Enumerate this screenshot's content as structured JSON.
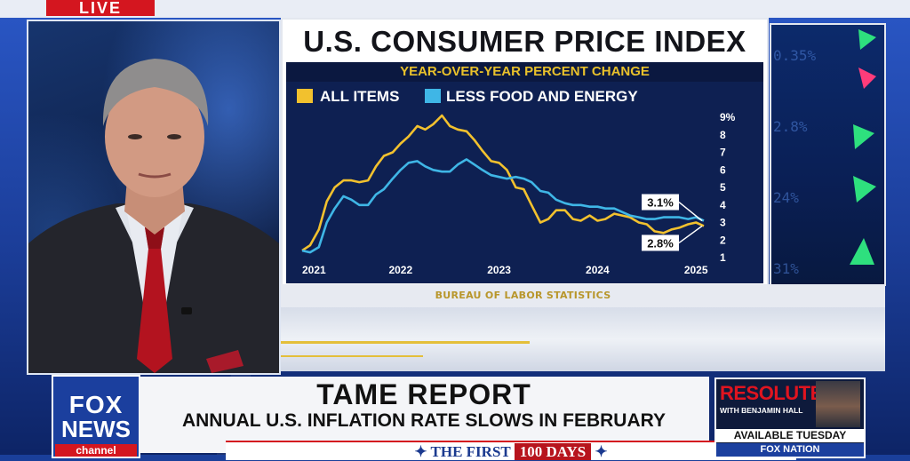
{
  "live_label": "LIVE",
  "chart_panel": {
    "title": "U.S. CONSUMER PRICE INDEX",
    "subtitle": "YEAR-OVER-YEAR PERCENT CHANGE",
    "source": "BUREAU OF LABOR STATISTICS"
  },
  "chart_data": {
    "type": "line",
    "title": "U.S. CONSUMER PRICE INDEX",
    "subtitle": "YEAR-OVER-YEAR PERCENT CHANGE",
    "xlabel": "",
    "ylabel": "",
    "x_ticks": [
      "2021",
      "2022",
      "2023",
      "2024",
      "2025"
    ],
    "y_ticks": [
      "9%",
      "8",
      "7",
      "6",
      "5",
      "4",
      "3",
      "2",
      "1"
    ],
    "ylim": [
      1,
      9
    ],
    "xlim": [
      2021.0,
      2025.17
    ],
    "legend_position": "top-left",
    "series": [
      {
        "name": "ALL ITEMS",
        "color": "#f2c12e",
        "points": [
          [
            2021.0,
            1.4
          ],
          [
            2021.08,
            1.7
          ],
          [
            2021.17,
            2.6
          ],
          [
            2021.25,
            4.2
          ],
          [
            2021.33,
            5.0
          ],
          [
            2021.42,
            5.4
          ],
          [
            2021.5,
            5.4
          ],
          [
            2021.58,
            5.3
          ],
          [
            2021.67,
            5.4
          ],
          [
            2021.75,
            6.2
          ],
          [
            2021.83,
            6.8
          ],
          [
            2021.92,
            7.0
          ],
          [
            2022.0,
            7.5
          ],
          [
            2022.08,
            7.9
          ],
          [
            2022.17,
            8.5
          ],
          [
            2022.25,
            8.3
          ],
          [
            2022.33,
            8.6
          ],
          [
            2022.42,
            9.1
          ],
          [
            2022.5,
            8.5
          ],
          [
            2022.58,
            8.3
          ],
          [
            2022.67,
            8.2
          ],
          [
            2022.75,
            7.7
          ],
          [
            2022.83,
            7.1
          ],
          [
            2022.92,
            6.5
          ],
          [
            2023.0,
            6.4
          ],
          [
            2023.08,
            6.0
          ],
          [
            2023.17,
            5.0
          ],
          [
            2023.25,
            4.9
          ],
          [
            2023.33,
            4.0
          ],
          [
            2023.42,
            3.0
          ],
          [
            2023.5,
            3.2
          ],
          [
            2023.58,
            3.7
          ],
          [
            2023.67,
            3.7
          ],
          [
            2023.75,
            3.2
          ],
          [
            2023.83,
            3.1
          ],
          [
            2023.92,
            3.4
          ],
          [
            2024.0,
            3.1
          ],
          [
            2024.08,
            3.2
          ],
          [
            2024.17,
            3.5
          ],
          [
            2024.25,
            3.4
          ],
          [
            2024.33,
            3.3
          ],
          [
            2024.42,
            3.0
          ],
          [
            2024.5,
            2.9
          ],
          [
            2024.58,
            2.5
          ],
          [
            2024.67,
            2.4
          ],
          [
            2024.75,
            2.6
          ],
          [
            2024.83,
            2.7
          ],
          [
            2024.92,
            2.9
          ],
          [
            2025.0,
            3.0
          ],
          [
            2025.08,
            2.8
          ]
        ]
      },
      {
        "name": "LESS FOOD AND ENERGY",
        "color": "#3fb6e6",
        "points": [
          [
            2021.0,
            1.4
          ],
          [
            2021.08,
            1.3
          ],
          [
            2021.17,
            1.6
          ],
          [
            2021.25,
            3.0
          ],
          [
            2021.33,
            3.8
          ],
          [
            2021.42,
            4.5
          ],
          [
            2021.5,
            4.3
          ],
          [
            2021.58,
            4.0
          ],
          [
            2021.67,
            4.0
          ],
          [
            2021.75,
            4.6
          ],
          [
            2021.83,
            4.9
          ],
          [
            2021.92,
            5.5
          ],
          [
            2022.0,
            6.0
          ],
          [
            2022.08,
            6.4
          ],
          [
            2022.17,
            6.5
          ],
          [
            2022.25,
            6.2
          ],
          [
            2022.33,
            6.0
          ],
          [
            2022.42,
            5.9
          ],
          [
            2022.5,
            5.9
          ],
          [
            2022.58,
            6.3
          ],
          [
            2022.67,
            6.6
          ],
          [
            2022.75,
            6.3
          ],
          [
            2022.83,
            6.0
          ],
          [
            2022.92,
            5.7
          ],
          [
            2023.0,
            5.6
          ],
          [
            2023.08,
            5.5
          ],
          [
            2023.17,
            5.6
          ],
          [
            2023.25,
            5.5
          ],
          [
            2023.33,
            5.3
          ],
          [
            2023.42,
            4.8
          ],
          [
            2023.5,
            4.7
          ],
          [
            2023.58,
            4.3
          ],
          [
            2023.67,
            4.1
          ],
          [
            2023.75,
            4.0
          ],
          [
            2023.83,
            4.0
          ],
          [
            2023.92,
            3.9
          ],
          [
            2024.0,
            3.9
          ],
          [
            2024.08,
            3.8
          ],
          [
            2024.17,
            3.8
          ],
          [
            2024.25,
            3.6
          ],
          [
            2024.33,
            3.4
          ],
          [
            2024.42,
            3.3
          ],
          [
            2024.5,
            3.2
          ],
          [
            2024.58,
            3.2
          ],
          [
            2024.67,
            3.3
          ],
          [
            2024.75,
            3.3
          ],
          [
            2024.83,
            3.3
          ],
          [
            2024.92,
            3.2
          ],
          [
            2025.0,
            3.3
          ],
          [
            2025.08,
            3.1
          ]
        ]
      }
    ],
    "annotations": [
      {
        "text": "3.1%",
        "series": "LESS FOOD AND ENERGY",
        "value": 3.1
      },
      {
        "text": "2.8%",
        "series": "ALL ITEMS",
        "value": 2.8
      }
    ]
  },
  "lower_third": {
    "network_top": "FOX",
    "network_mid": "NEWS",
    "network_bottom": "channel",
    "headline": "TAME REPORT",
    "subheadline": "ANNUAL U.S. INFLATION RATE SLOWS IN FEBRUARY",
    "ticker_left": "THE FIRST",
    "ticker_days": "100 DAYS"
  },
  "promo": {
    "title": "RESOLUTE",
    "with": "WITH BENJAMIN HALL",
    "availability": "AVAILABLE TUESDAY",
    "platform": "FOX NATION"
  },
  "colors": {
    "brand_red": "#d4161f",
    "brand_blue": "#1b3f9e",
    "chart_bg": "#0e2052",
    "gold": "#e9c12b"
  }
}
